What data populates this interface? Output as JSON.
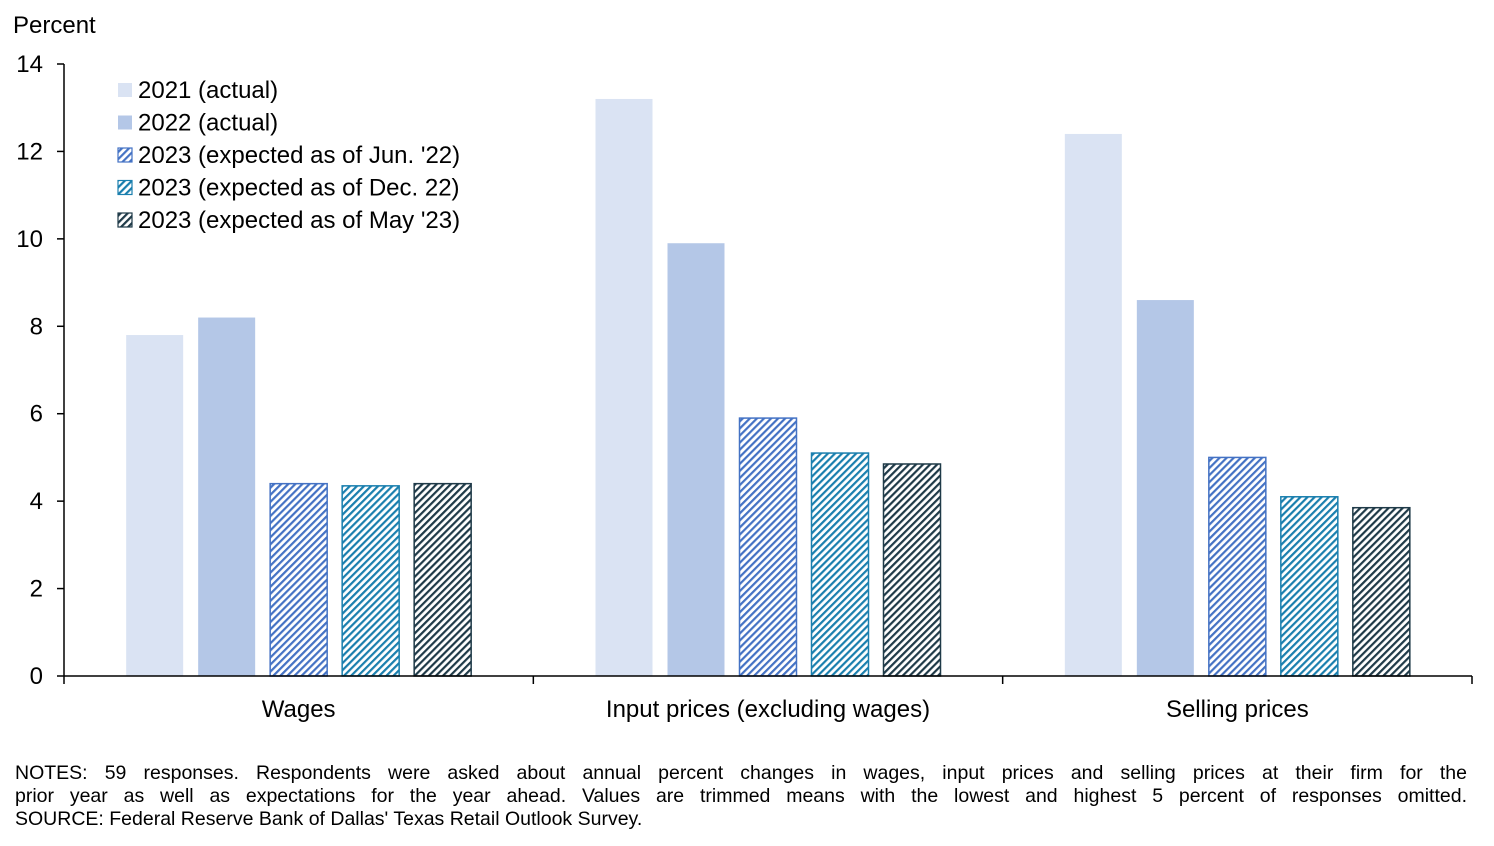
{
  "chart_data": {
    "type": "bar",
    "title": "",
    "ylabel": "Percent",
    "xlabel": "",
    "ylim": [
      0,
      14
    ],
    "yticks": [
      0,
      2,
      4,
      6,
      8,
      10,
      12,
      14
    ],
    "grid": false,
    "legend_position": "top-left",
    "categories": [
      "Wages",
      "Input prices (excluding wages)",
      "Selling prices"
    ],
    "series": [
      {
        "name": "2021 (actual)",
        "values": [
          7.8,
          13.2,
          12.4
        ],
        "color": "#dae3f3",
        "pattern": "solid"
      },
      {
        "name": "2022 (actual)",
        "values": [
          8.2,
          9.9,
          8.6
        ],
        "color": "#b4c7e7",
        "pattern": "solid"
      },
      {
        "name": "2023 (expected as of Jun. '22)",
        "values": [
          4.4,
          5.9,
          5.0
        ],
        "color": "#4472c4",
        "pattern": "diagonal-hatch"
      },
      {
        "name": "2023 (expected as of Dec. 22)",
        "values": [
          4.35,
          5.1,
          4.1
        ],
        "color": "#1a7fae",
        "pattern": "diagonal-hatch"
      },
      {
        "name": "2023 (expected as of May '23)",
        "values": [
          4.4,
          4.85,
          3.85
        ],
        "color": "#1f3a48",
        "pattern": "diagonal-hatch"
      }
    ]
  },
  "notes": {
    "line1": "NOTES: 59 responses. Respondents were asked about annual percent changes in wages, input prices and selling prices at their firm for the",
    "line2": "prior year as well as expectations for the year ahead. Values are trimmed means with the lowest and highest 5 percent of responses omitted.",
    "line3": "SOURCE: Federal Reserve Bank of Dallas' Texas Retail Outlook Survey."
  }
}
